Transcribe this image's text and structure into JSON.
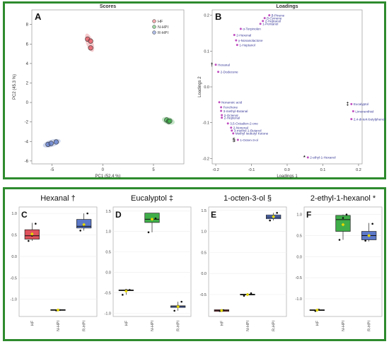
{
  "colors": {
    "frame": "#2e8b2e",
    "HF": "#e0525c",
    "N-HPI": "#3fae49",
    "R-HPI": "#5b78c8",
    "loading_point": "#c050c0",
    "loading_text": "#3a3a9a",
    "mean_marker": "#e6d800"
  },
  "chart_data": [
    {
      "type": "scatter",
      "panel_letter": "A",
      "title": "Scores",
      "xlabel": "PC1 (52.4 %)",
      "ylabel": "PC2 (45.3 %)",
      "xlim": [
        -7,
        8
      ],
      "ylim": [
        -6.3,
        9.5
      ],
      "xticks": [
        -5,
        0,
        5
      ],
      "yticks": [
        8,
        6,
        4,
        2,
        0,
        -2,
        -4,
        -6
      ],
      "legend_position": "top-right",
      "series": [
        {
          "name": "HF",
          "points": [
            [
              -1.5,
              6.5
            ],
            [
              -1.2,
              6.3
            ],
            [
              -1.2,
              5.6
            ]
          ]
        },
        {
          "name": "N-HPI",
          "points": [
            [
              6.3,
              -1.8
            ],
            [
              6.5,
              -1.95
            ],
            [
              6.6,
              -1.9
            ]
          ]
        },
        {
          "name": "R-HPI",
          "points": [
            [
              -5.4,
              -4.3
            ],
            [
              -5.1,
              -4.2
            ],
            [
              -4.6,
              -4.05
            ]
          ]
        }
      ]
    },
    {
      "type": "scatter",
      "panel_letter": "B",
      "title": "Loadings",
      "xlabel": "Loadings 1",
      "ylabel": "Loadings 2",
      "xlim": [
        -0.21,
        0.21
      ],
      "ylim": [
        -0.215,
        0.215
      ],
      "xticks": [
        -0.2,
        -0.1,
        0.0,
        0.1,
        0.2
      ],
      "xtick_labels": [
        "-0.2",
        "-0.1",
        "0.0",
        "0.1",
        "0.2"
      ],
      "yticks": [
        0.2,
        0.1,
        0.0,
        -0.1,
        -0.2
      ],
      "ytick_labels": [
        "0.2",
        "0.1",
        "0.0",
        "-0.1",
        "-0.2"
      ],
      "points": [
        {
          "label": "β-Pinene",
          "x": -0.05,
          "y": 0.2
        },
        {
          "label": "β-Cymene",
          "x": -0.063,
          "y": 0.192
        },
        {
          "label": "2-Heptanol",
          "x": -0.068,
          "y": 0.184
        },
        {
          "label": "1-Pentanol",
          "x": -0.075,
          "y": 0.176
        },
        {
          "label": "α-Terpinolen",
          "x": -0.13,
          "y": 0.162
        },
        {
          "label": "2-Hexenal",
          "x": -0.148,
          "y": 0.145
        },
        {
          "label": "γ-Nonanolactone",
          "x": -0.143,
          "y": 0.13
        },
        {
          "label": "1-Heptanol",
          "x": -0.14,
          "y": 0.117
        },
        {
          "label": "Hexanal",
          "x": -0.2,
          "y": 0.062,
          "marker": "†"
        },
        {
          "label": "2-Dodecene",
          "x": -0.193,
          "y": 0.042
        },
        {
          "label": "Nonanoic acid",
          "x": -0.19,
          "y": -0.043
        },
        {
          "label": "Fenchone",
          "x": -0.185,
          "y": -0.057
        },
        {
          "label": "3-methyl-Butanal",
          "x": -0.185,
          "y": -0.067
        },
        {
          "label": "2-Octenal",
          "x": -0.183,
          "y": -0.079
        },
        {
          "label": "2-Heptenal",
          "x": -0.183,
          "y": -0.086
        },
        {
          "label": "3,5-Octadien-2-one",
          "x": -0.166,
          "y": -0.102
        },
        {
          "label": "2-Nonenal",
          "x": -0.157,
          "y": -0.114
        },
        {
          "label": "3-methyl-1-Butanol",
          "x": -0.155,
          "y": -0.122
        },
        {
          "label": "Methyl Isobutyl Ketone",
          "x": -0.151,
          "y": -0.13
        },
        {
          "label": "1-Octen-3-ol",
          "x": -0.138,
          "y": -0.148,
          "marker": "§"
        },
        {
          "label": "2-ethyl-1-Hexanol",
          "x": 0.058,
          "y": -0.197,
          "marker": "*"
        },
        {
          "label": "Eucalyptol",
          "x": 0.18,
          "y": -0.048,
          "marker": "‡"
        },
        {
          "label": "Limonenthiol",
          "x": 0.185,
          "y": -0.068
        },
        {
          "label": "2,4-di-tert-butylphenol",
          "x": 0.18,
          "y": -0.09
        }
      ]
    },
    {
      "type": "box",
      "panel_letter": "C",
      "title": "Hexanal †",
      "categories": [
        "HF",
        "N-HPI",
        "R-HPI"
      ],
      "ylim": [
        -1.4,
        1.15
      ],
      "yticks": [
        1.0,
        0.5,
        0.0,
        -0.5,
        -1.0
      ],
      "ytick_labels": [
        "1.0",
        "0.5",
        "0.0",
        "-0.5",
        "-1.0"
      ],
      "boxes": [
        {
          "q1": 0.4,
          "median": 0.48,
          "q3": 0.62,
          "whisker_low": 0.36,
          "whisker_high": 0.78,
          "mean": 0.52,
          "points": [
            0.36,
            0.48,
            0.76
          ]
        },
        {
          "q1": -1.26,
          "median": -1.25,
          "q3": -1.24,
          "whisker_low": -1.26,
          "whisker_high": -1.24,
          "mean": -1.25,
          "points": [
            -1.26,
            -1.25
          ]
        },
        {
          "q1": 0.66,
          "median": 0.7,
          "q3": 0.86,
          "whisker_low": 0.6,
          "whisker_high": 1.0,
          "mean": 0.74,
          "points": [
            0.6,
            0.72,
            1.0
          ]
        }
      ]
    },
    {
      "type": "box",
      "panel_letter": "D",
      "title": "Eucalyptol ‡",
      "categories": [
        "HF",
        "N-HPI",
        "R-HPI"
      ],
      "ylim": [
        -1.08,
        1.6
      ],
      "yticks": [
        1.5,
        1.0,
        0.5,
        0.0,
        -0.5,
        -1.0
      ],
      "ytick_labels": [
        "1.5",
        "1.0",
        "0.5",
        "0.0",
        "-0.5",
        "-1.0"
      ],
      "boxes": [
        {
          "q1": -0.45,
          "median": -0.44,
          "q3": -0.43,
          "whisker_low": -0.55,
          "whisker_high": -0.43,
          "mean": -0.46,
          "points": [
            -0.55,
            -0.43,
            -0.43
          ]
        },
        {
          "q1": 1.22,
          "median": 1.3,
          "q3": 1.45,
          "whisker_low": 0.98,
          "whisker_high": 1.45,
          "mean": 1.3,
          "points": [
            0.98,
            1.3,
            1.32
          ]
        },
        {
          "q1": -0.86,
          "median": -0.83,
          "q3": -0.82,
          "whisker_low": -0.94,
          "whisker_high": -0.72,
          "mean": -0.84,
          "points": [
            -0.94,
            -0.82,
            -0.72
          ]
        }
      ]
    },
    {
      "type": "box",
      "panel_letter": "E",
      "title": "1-octen-3-ol §",
      "categories": [
        "HF",
        "N-HPI",
        "R-HPI"
      ],
      "ylim": [
        -1.02,
        1.58
      ],
      "yticks": [
        1.5,
        1.0,
        0.5,
        0.0,
        -0.5
      ],
      "ytick_labels": [
        "1.5",
        "1.0",
        "0.5",
        "0.0",
        "-0.5"
      ],
      "boxes": [
        {
          "q1": -0.9,
          "median": -0.88,
          "q3": -0.86,
          "whisker_low": -0.9,
          "whisker_high": -0.86,
          "mean": -0.88,
          "points": [
            -0.89,
            -0.87
          ]
        },
        {
          "q1": -0.51,
          "median": -0.5,
          "q3": -0.49,
          "whisker_low": -0.53,
          "whisker_high": -0.47,
          "mean": -0.5,
          "points": [
            -0.53,
            -0.49,
            -0.47
          ]
        },
        {
          "q1": 1.3,
          "median": 1.34,
          "q3": 1.39,
          "whisker_low": 1.26,
          "whisker_high": 1.44,
          "mean": 1.35,
          "points": [
            1.26,
            1.36,
            1.44
          ]
        }
      ]
    },
    {
      "type": "box",
      "panel_letter": "F",
      "title": "2-ethyl-1-hexanol *",
      "categories": [
        "HF",
        "N-HPI",
        "R-HPI"
      ],
      "ylim": [
        -1.42,
        1.18
      ],
      "yticks": [
        1.0,
        0.5,
        0.0,
        -0.5,
        -1.0
      ],
      "ytick_labels": [
        "1.0",
        "0.5",
        "0.0",
        "-0.5",
        "-1.0"
      ],
      "boxes": [
        {
          "q1": -1.28,
          "median": -1.27,
          "q3": -1.26,
          "whisker_low": -1.29,
          "whisker_high": -1.25,
          "mean": -1.27,
          "points": [
            -1.29,
            -1.26
          ]
        },
        {
          "q1": 0.6,
          "median": 0.88,
          "q3": 0.98,
          "whisker_low": 0.4,
          "whisker_high": 1.0,
          "mean": 0.76,
          "points": [
            0.4,
            0.92,
            1.0
          ]
        },
        {
          "q1": 0.4,
          "median": 0.5,
          "q3": 0.6,
          "whisker_low": 0.36,
          "whisker_high": 0.8,
          "mean": 0.5,
          "points": [
            0.38,
            0.5,
            0.78
          ]
        }
      ]
    }
  ]
}
